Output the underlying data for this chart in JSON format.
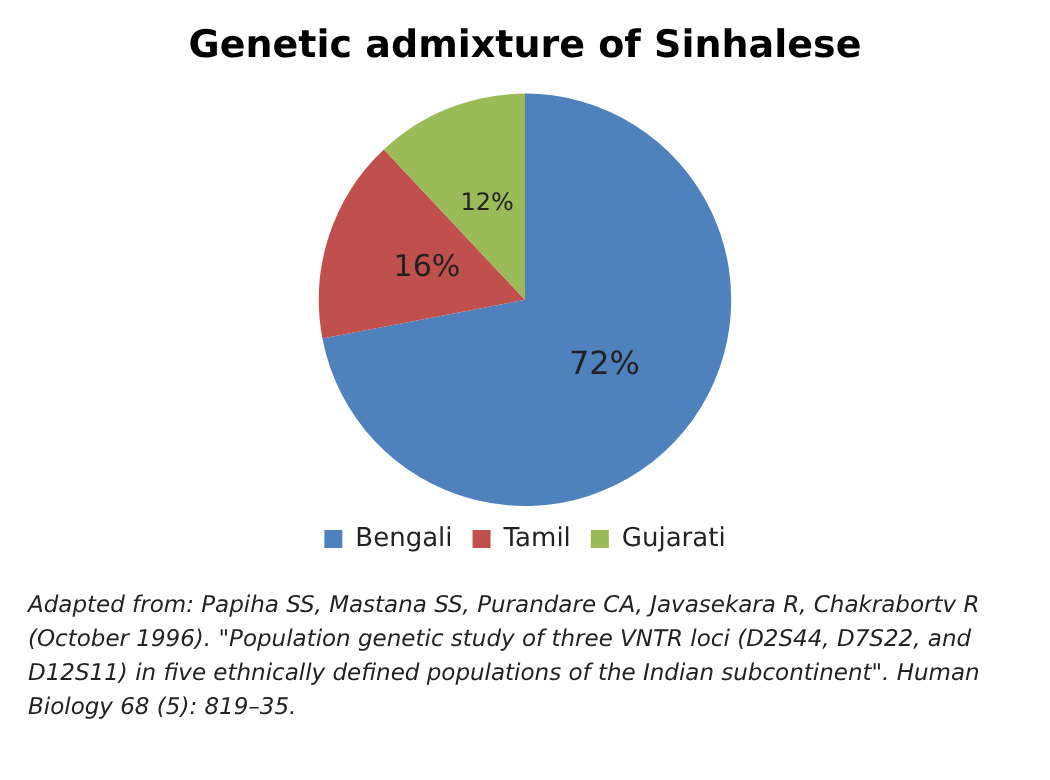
{
  "chart_data": {
    "type": "pie",
    "title": "Genetic admixture of Sinhalese",
    "categories": [
      "Bengali",
      "Tamil",
      "Gujarati"
    ],
    "values": [
      72,
      16,
      12
    ],
    "colors": [
      "#4f81bd",
      "#c0504d",
      "#9bbb59"
    ],
    "value_labels": [
      "72%",
      "16%",
      "12%"
    ],
    "legend": "bottom",
    "annotations": [
      "Adapted from: Papiha SS, Mastana SS, Purandare CA, Javasekara R, Chakrabortv R (October 1996). \"Population genetic study of three VNTR loci (D2S44, D7S22, and D12S11) in five ethnically defined populations of the Indian subcontinent\". Human Biology 68 (5): 819–35."
    ]
  }
}
